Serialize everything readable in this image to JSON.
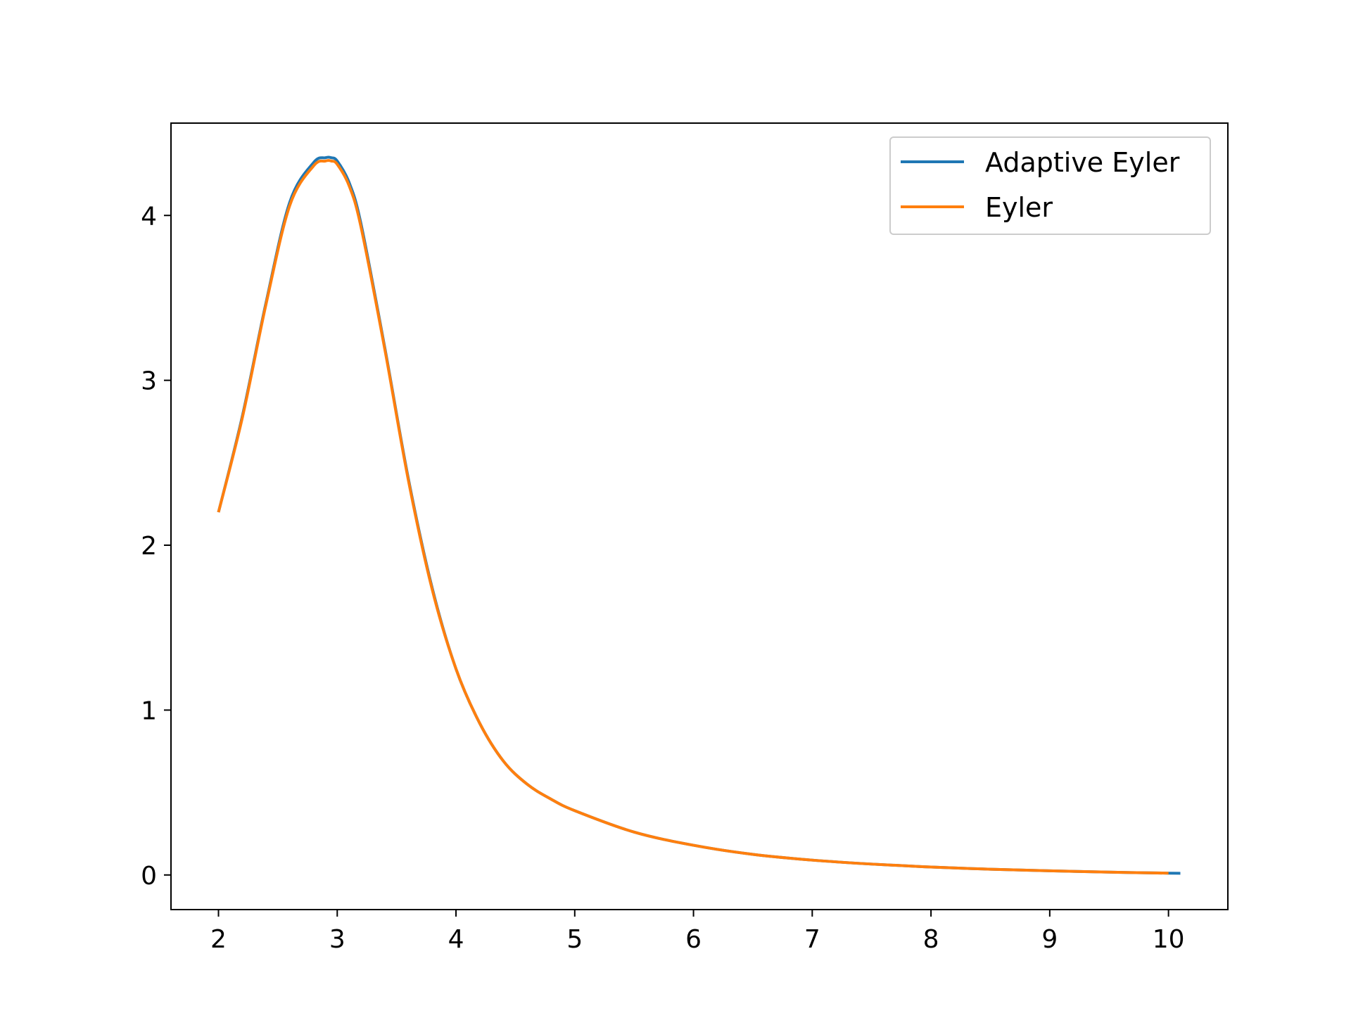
{
  "chart_data": {
    "type": "line",
    "title": "",
    "xlabel": "",
    "ylabel": "",
    "xlim": [
      1.6,
      10.5
    ],
    "ylim": [
      -0.21,
      4.56
    ],
    "grid": false,
    "legend_position": "top-right",
    "x_ticks": [
      2,
      3,
      4,
      5,
      6,
      7,
      8,
      9,
      10
    ],
    "x_tick_labels": [
      "2",
      "3",
      "4",
      "5",
      "6",
      "7",
      "8",
      "9",
      "10"
    ],
    "y_ticks": [
      0,
      1,
      2,
      3,
      4
    ],
    "y_tick_labels": [
      "0",
      "1",
      "2",
      "3",
      "4"
    ],
    "series": [
      {
        "name": "Adaptive Eyler",
        "color": "#1f77b4",
        "x": [
          2.0,
          2.2,
          2.4,
          2.6,
          2.8,
          2.9,
          2.95,
          3.0,
          3.1,
          3.2,
          3.4,
          3.6,
          3.8,
          4.0,
          4.2,
          4.4,
          4.6,
          4.8,
          5.0,
          5.5,
          6.0,
          6.5,
          7.0,
          7.5,
          8.0,
          8.5,
          9.0,
          9.5,
          10.0,
          10.1
        ],
        "y": [
          2.2,
          2.78,
          3.47,
          4.08,
          4.32,
          4.35,
          4.35,
          4.33,
          4.2,
          3.95,
          3.2,
          2.4,
          1.74,
          1.25,
          0.92,
          0.69,
          0.55,
          0.46,
          0.39,
          0.26,
          0.18,
          0.125,
          0.09,
          0.066,
          0.048,
          0.035,
          0.025,
          0.017,
          0.011,
          0.01
        ]
      },
      {
        "name": "Eyler",
        "color": "#ff7f0e",
        "x": [
          2.0,
          2.2,
          2.4,
          2.6,
          2.8,
          2.9,
          2.95,
          3.0,
          3.1,
          3.2,
          3.4,
          3.6,
          3.8,
          4.0,
          4.2,
          4.4,
          4.6,
          4.8,
          5.0,
          5.5,
          6.0,
          6.5,
          7.0,
          7.5,
          8.0,
          8.5,
          9.0,
          9.5,
          10.0
        ],
        "y": [
          2.2,
          2.77,
          3.46,
          4.06,
          4.3,
          4.33,
          4.33,
          4.31,
          4.18,
          3.93,
          3.19,
          2.39,
          1.73,
          1.25,
          0.92,
          0.69,
          0.55,
          0.46,
          0.39,
          0.26,
          0.18,
          0.125,
          0.09,
          0.066,
          0.048,
          0.035,
          0.025,
          0.017,
          0.011
        ]
      }
    ]
  }
}
